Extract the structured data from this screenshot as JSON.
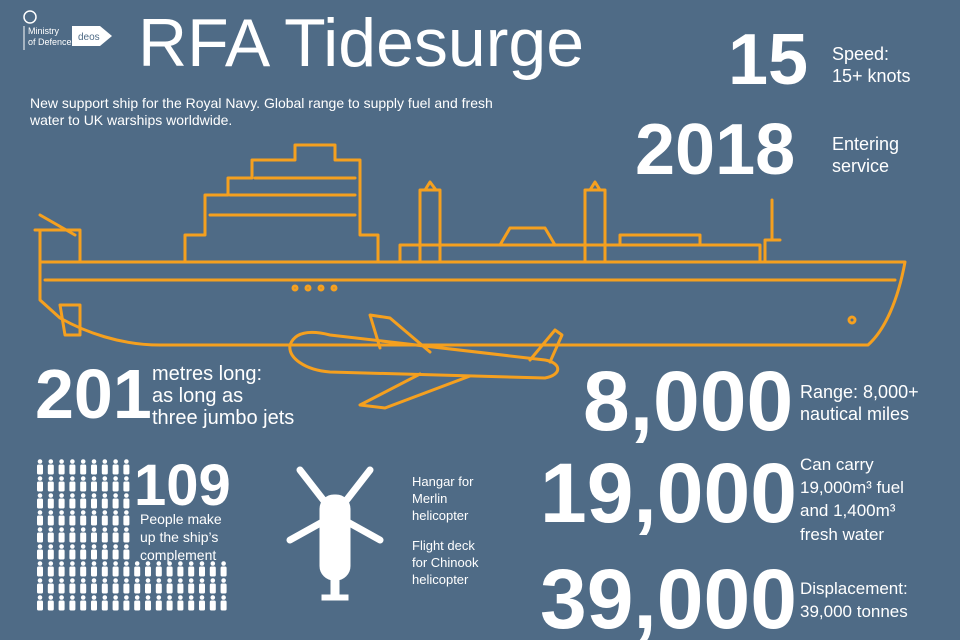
{
  "logos": {
    "crest_text": [
      "Ministry",
      "of Defence"
    ],
    "deos": "deos"
  },
  "title": "RFA Tidesurge",
  "subtitle": [
    "New support ship for the Royal Navy. Global range to supply fuel and fresh",
    "water to UK warships worldwide."
  ],
  "facts": [
    {
      "figure": "15",
      "caption": [
        "Speed:",
        "15+ knots"
      ]
    },
    {
      "figure": "2018",
      "caption": [
        "Entering",
        "service"
      ]
    },
    {
      "figure": "201",
      "caption": [
        "metres long:",
        "as long as",
        "three jumbo jets"
      ]
    },
    {
      "figure": "8,000",
      "caption": [
        "Range: 8,000+",
        "nautical miles"
      ]
    },
    {
      "figure": "109",
      "caption": [
        "People make",
        "up the ship’s",
        "complement"
      ]
    },
    {
      "figure": "19,000",
      "caption": [
        "Can carry",
        "19,000m³ fuel",
        "and 1,400m³",
        "fresh water"
      ]
    },
    {
      "figure": "39,000",
      "caption": [
        "Displacement:",
        "39,000 tonnes"
      ]
    }
  ],
  "helicopter": {
    "hangar": [
      "Hangar for",
      "Merlin",
      "helicopter"
    ],
    "flight_deck": [
      "Flight deck",
      "for Chinook",
      "helicopter"
    ]
  }
}
